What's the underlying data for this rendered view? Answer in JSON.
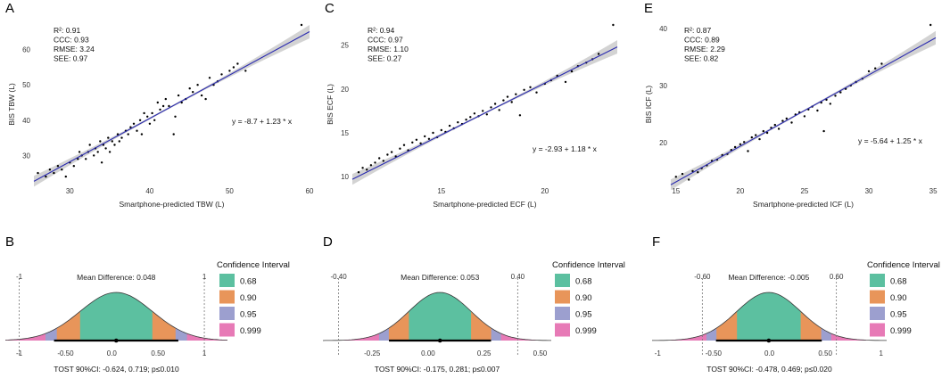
{
  "figure": {
    "panels_top": [
      {
        "letter": "A",
        "stats": [
          "R²: 0.91",
          "CCC: 0.93",
          "RMSE: 3.24",
          "SEE: 0.97"
        ],
        "equation": "y = -8.7 + 1.23 * x",
        "xlabel": "Smartphone-predicted TBW (L)",
        "ylabel": "BIS TBW (L)",
        "xticks": [
          "30",
          "40",
          "50",
          "60"
        ],
        "yticks": [
          "30",
          "40",
          "50",
          "60"
        ]
      },
      {
        "letter": "C",
        "stats": [
          "R²: 0.94",
          "CCC: 0.97",
          "RMSE: 1.10",
          "SEE: 0.27"
        ],
        "equation": "y = -2.93 + 1.18 * x",
        "xlabel": "Smartphone-predicted ECF (L)",
        "ylabel": "BIS ECF (L)",
        "xticks": [
          "15",
          "20"
        ],
        "yticks": [
          "10",
          "15",
          "20",
          "25"
        ]
      },
      {
        "letter": "E",
        "stats": [
          "R²: 0.87",
          "CCC: 0.89",
          "RMSE: 2.29",
          "SEE: 0.82"
        ],
        "equation": "y = -5.64 + 1.25 * x",
        "xlabel": "Smartphone-predicted ICF (L)",
        "ylabel": "BIS ICF (L)",
        "xticks": [
          "15",
          "20",
          "25",
          "30",
          "35"
        ],
        "yticks": [
          "20",
          "30",
          "40"
        ]
      }
    ],
    "panels_bottom": [
      {
        "letter": "B",
        "mean_difference": "Mean Difference: 0.048",
        "tost": "TOST 90%CI: -0.624, 0.719; p≤0.010",
        "bound_low_label": "-1",
        "bound_high_label": "1",
        "xticks": [
          "-1",
          "-0.50",
          "0.0",
          "0.50",
          "1"
        ]
      },
      {
        "letter": "D",
        "mean_difference": "Mean Difference: 0.053",
        "tost": "TOST 90%CI: -0.175, 0.281; p≤0.007",
        "bound_low_label": "-0.40",
        "bound_high_label": "0.40",
        "xticks": [
          "-0.25",
          "0.00",
          "0.25",
          "0.50"
        ]
      },
      {
        "letter": "F",
        "mean_difference": "Mean Difference: -0.005",
        "tost": "TOST 90%CI: -0.478, 0.469; p≤0.020",
        "bound_low_label": "-0.60",
        "bound_high_label": "0.60",
        "xticks": [
          "-1",
          "-0.50",
          "0.0",
          "0.50",
          "1"
        ]
      }
    ],
    "legend": {
      "title": "Confidence Interval",
      "items": [
        {
          "label": "0.68",
          "color": "#5cc0a0"
        },
        {
          "label": "0.90",
          "color": "#e8955a"
        },
        {
          "label": "0.95",
          "color": "#9c9fcf"
        },
        {
          "label": "0.999",
          "color": "#e77ab6"
        }
      ]
    }
  },
  "chart_data": [
    {
      "type": "scatter",
      "title": "A",
      "xlabel": "Smartphone-predicted TBW (L)",
      "ylabel": "BIS TBW (L)",
      "xlim": [
        25.5,
        60
      ],
      "ylim": [
        22,
        67
      ],
      "fit": {
        "intercept": -8.7,
        "slope": 1.23
      },
      "points": [
        [
          26,
          25
        ],
        [
          27,
          24
        ],
        [
          27.5,
          26
        ],
        [
          28,
          25
        ],
        [
          28.5,
          27
        ],
        [
          29,
          26
        ],
        [
          29.5,
          24
        ],
        [
          30,
          28
        ],
        [
          30.5,
          27
        ],
        [
          31,
          29
        ],
        [
          31.2,
          31
        ],
        [
          31.5,
          30
        ],
        [
          32,
          29
        ],
        [
          32.3,
          31
        ],
        [
          32.5,
          33
        ],
        [
          33,
          30
        ],
        [
          33.2,
          32
        ],
        [
          33.5,
          31
        ],
        [
          33.8,
          34
        ],
        [
          34,
          28
        ],
        [
          34.2,
          33
        ],
        [
          34.5,
          32
        ],
        [
          34.8,
          35
        ],
        [
          35,
          31
        ],
        [
          35.3,
          34
        ],
        [
          35.6,
          33
        ],
        [
          36,
          36
        ],
        [
          36.2,
          34
        ],
        [
          36.5,
          35
        ],
        [
          37,
          37
        ],
        [
          37.3,
          36
        ],
        [
          37.6,
          38
        ],
        [
          38,
          39
        ],
        [
          38.4,
          37
        ],
        [
          38.8,
          40
        ],
        [
          39,
          36
        ],
        [
          39.3,
          42
        ],
        [
          39.7,
          41
        ],
        [
          40,
          39
        ],
        [
          40.3,
          42
        ],
        [
          40.6,
          40
        ],
        [
          41,
          45
        ],
        [
          41.3,
          43
        ],
        [
          41.7,
          44
        ],
        [
          42,
          46
        ],
        [
          42.4,
          44
        ],
        [
          43,
          36
        ],
        [
          43.2,
          41
        ],
        [
          43.6,
          47
        ],
        [
          44,
          45
        ],
        [
          44.5,
          46
        ],
        [
          45,
          49
        ],
        [
          45.4,
          48
        ],
        [
          46,
          50
        ],
        [
          46.5,
          47
        ],
        [
          47,
          46
        ],
        [
          47.5,
          52
        ],
        [
          48,
          50
        ],
        [
          48.5,
          51
        ],
        [
          49,
          53
        ],
        [
          50,
          54
        ],
        [
          50.5,
          55
        ],
        [
          51,
          56
        ],
        [
          52,
          54
        ],
        [
          59,
          67
        ]
      ]
    },
    {
      "type": "scatter",
      "title": "C",
      "xlabel": "Smartphone-predicted ECF (L)",
      "ylabel": "BIS ECF (L)",
      "xlim": [
        10.7,
        23.5
      ],
      "ylim": [
        9.2,
        27.3
      ],
      "fit": {
        "intercept": -2.93,
        "slope": 1.18
      },
      "points": [
        [
          11,
          10.5
        ],
        [
          11.2,
          11
        ],
        [
          11.4,
          10.8
        ],
        [
          11.6,
          11.3
        ],
        [
          11.8,
          11.6
        ],
        [
          12,
          12.1
        ],
        [
          12.2,
          11.8
        ],
        [
          12.4,
          12.5
        ],
        [
          12.6,
          12.8
        ],
        [
          12.8,
          12.3
        ],
        [
          13,
          13.2
        ],
        [
          13.2,
          13.6
        ],
        [
          13.4,
          13
        ],
        [
          13.6,
          13.9
        ],
        [
          13.8,
          14.2
        ],
        [
          14,
          13.8
        ],
        [
          14.2,
          14.6
        ],
        [
          14.4,
          14.3
        ],
        [
          14.6,
          15
        ],
        [
          14.8,
          14.5
        ],
        [
          15,
          15.3
        ],
        [
          15.2,
          15.1
        ],
        [
          15.4,
          15.8
        ],
        [
          15.6,
          15.5
        ],
        [
          15.8,
          16.2
        ],
        [
          16,
          16
        ],
        [
          16.2,
          16.5
        ],
        [
          16.4,
          16.8
        ],
        [
          16.6,
          17.2
        ],
        [
          16.8,
          16.9
        ],
        [
          17,
          17.5
        ],
        [
          17.2,
          17.1
        ],
        [
          17.4,
          17.9
        ],
        [
          17.6,
          18.3
        ],
        [
          17.8,
          17.6
        ],
        [
          18,
          18.7
        ],
        [
          18.2,
          19.1
        ],
        [
          18.4,
          18.5
        ],
        [
          18.6,
          19.4
        ],
        [
          18.8,
          17
        ],
        [
          19,
          19.9
        ],
        [
          19.3,
          20.2
        ],
        [
          19.6,
          19.6
        ],
        [
          20,
          20.6
        ],
        [
          20.3,
          21
        ],
        [
          20.6,
          21.5
        ],
        [
          21,
          20.8
        ],
        [
          21.3,
          22
        ],
        [
          21.6,
          22.6
        ],
        [
          22,
          23
        ],
        [
          22.3,
          23.4
        ],
        [
          22.6,
          24
        ],
        [
          23.3,
          27.3
        ]
      ]
    },
    {
      "type": "scatter",
      "title": "E",
      "xlabel": "Smartphone-predicted ICF (L)",
      "ylabel": "BIS ICF (L)",
      "xlim": [
        14.6,
        35.2
      ],
      "ylim": [
        12.8,
        40.6
      ],
      "fit": {
        "intercept": -5.64,
        "slope": 1.25
      },
      "points": [
        [
          15,
          14
        ],
        [
          15.5,
          14.5
        ],
        [
          16,
          13.5
        ],
        [
          16.3,
          15
        ],
        [
          16.7,
          14.8
        ],
        [
          17,
          15.5
        ],
        [
          17.4,
          16
        ],
        [
          17.8,
          16.8
        ],
        [
          18.2,
          17
        ],
        [
          18.6,
          17.8
        ],
        [
          19,
          18
        ],
        [
          19.3,
          18.7
        ],
        [
          19.6,
          19.2
        ],
        [
          20,
          19.7
        ],
        [
          20.3,
          20.1
        ],
        [
          20.6,
          18.5
        ],
        [
          20.9,
          20.9
        ],
        [
          21.2,
          21.3
        ],
        [
          21.5,
          20.6
        ],
        [
          21.8,
          22
        ],
        [
          22.1,
          21.7
        ],
        [
          22.4,
          22.6
        ],
        [
          22.7,
          23.1
        ],
        [
          23,
          22.4
        ],
        [
          23.3,
          23.8
        ],
        [
          23.6,
          24.2
        ],
        [
          24,
          23.5
        ],
        [
          24.3,
          24.9
        ],
        [
          24.6,
          25.3
        ],
        [
          25,
          24.6
        ],
        [
          25.3,
          25.8
        ],
        [
          25.6,
          26.3
        ],
        [
          26,
          25.6
        ],
        [
          26.3,
          27
        ],
        [
          26.7,
          27.5
        ],
        [
          27,
          26.8
        ],
        [
          27.4,
          28.2
        ],
        [
          27.8,
          28.8
        ],
        [
          28.2,
          29.4
        ],
        [
          28.6,
          30
        ],
        [
          29,
          30.6
        ],
        [
          29.5,
          31.2
        ],
        [
          30,
          32.5
        ],
        [
          30.5,
          33
        ],
        [
          31,
          33.8
        ],
        [
          26.5,
          22
        ],
        [
          34.8,
          40.6
        ]
      ]
    },
    {
      "type": "area",
      "title": "B",
      "xlabel": "",
      "ylabel": "",
      "xlim": [
        -1.15,
        1.25
      ],
      "distribution": {
        "mean": 0.048,
        "sd": 0.39
      },
      "equivalence_bounds": [
        -1,
        1
      ],
      "tost_ci": [
        -0.624,
        0.719
      ],
      "ci_levels": [
        0.68,
        0.9,
        0.95,
        0.999
      ],
      "xticks": [
        -1,
        -0.5,
        0,
        0.5,
        1
      ]
    },
    {
      "type": "area",
      "title": "D",
      "xlabel": "",
      "ylabel": "",
      "xlim": [
        -0.47,
        0.55
      ],
      "distribution": {
        "mean": 0.053,
        "sd": 0.139
      },
      "equivalence_bounds": [
        -0.4,
        0.4
      ],
      "tost_ci": [
        -0.175,
        0.281
      ],
      "ci_levels": [
        0.68,
        0.9,
        0.95,
        0.999
      ],
      "xticks": [
        -0.25,
        0,
        0.25,
        0.5
      ]
    },
    {
      "type": "area",
      "title": "F",
      "xlabel": "",
      "ylabel": "",
      "xlim": [
        -1.05,
        1.05
      ],
      "distribution": {
        "mean": -0.005,
        "sd": 0.285
      },
      "equivalence_bounds": [
        -0.6,
        0.6
      ],
      "tost_ci": [
        -0.478,
        0.469
      ],
      "ci_levels": [
        0.68,
        0.9,
        0.95,
        0.999
      ],
      "xticks": [
        -1,
        -0.5,
        0,
        0.5,
        1
      ]
    }
  ]
}
